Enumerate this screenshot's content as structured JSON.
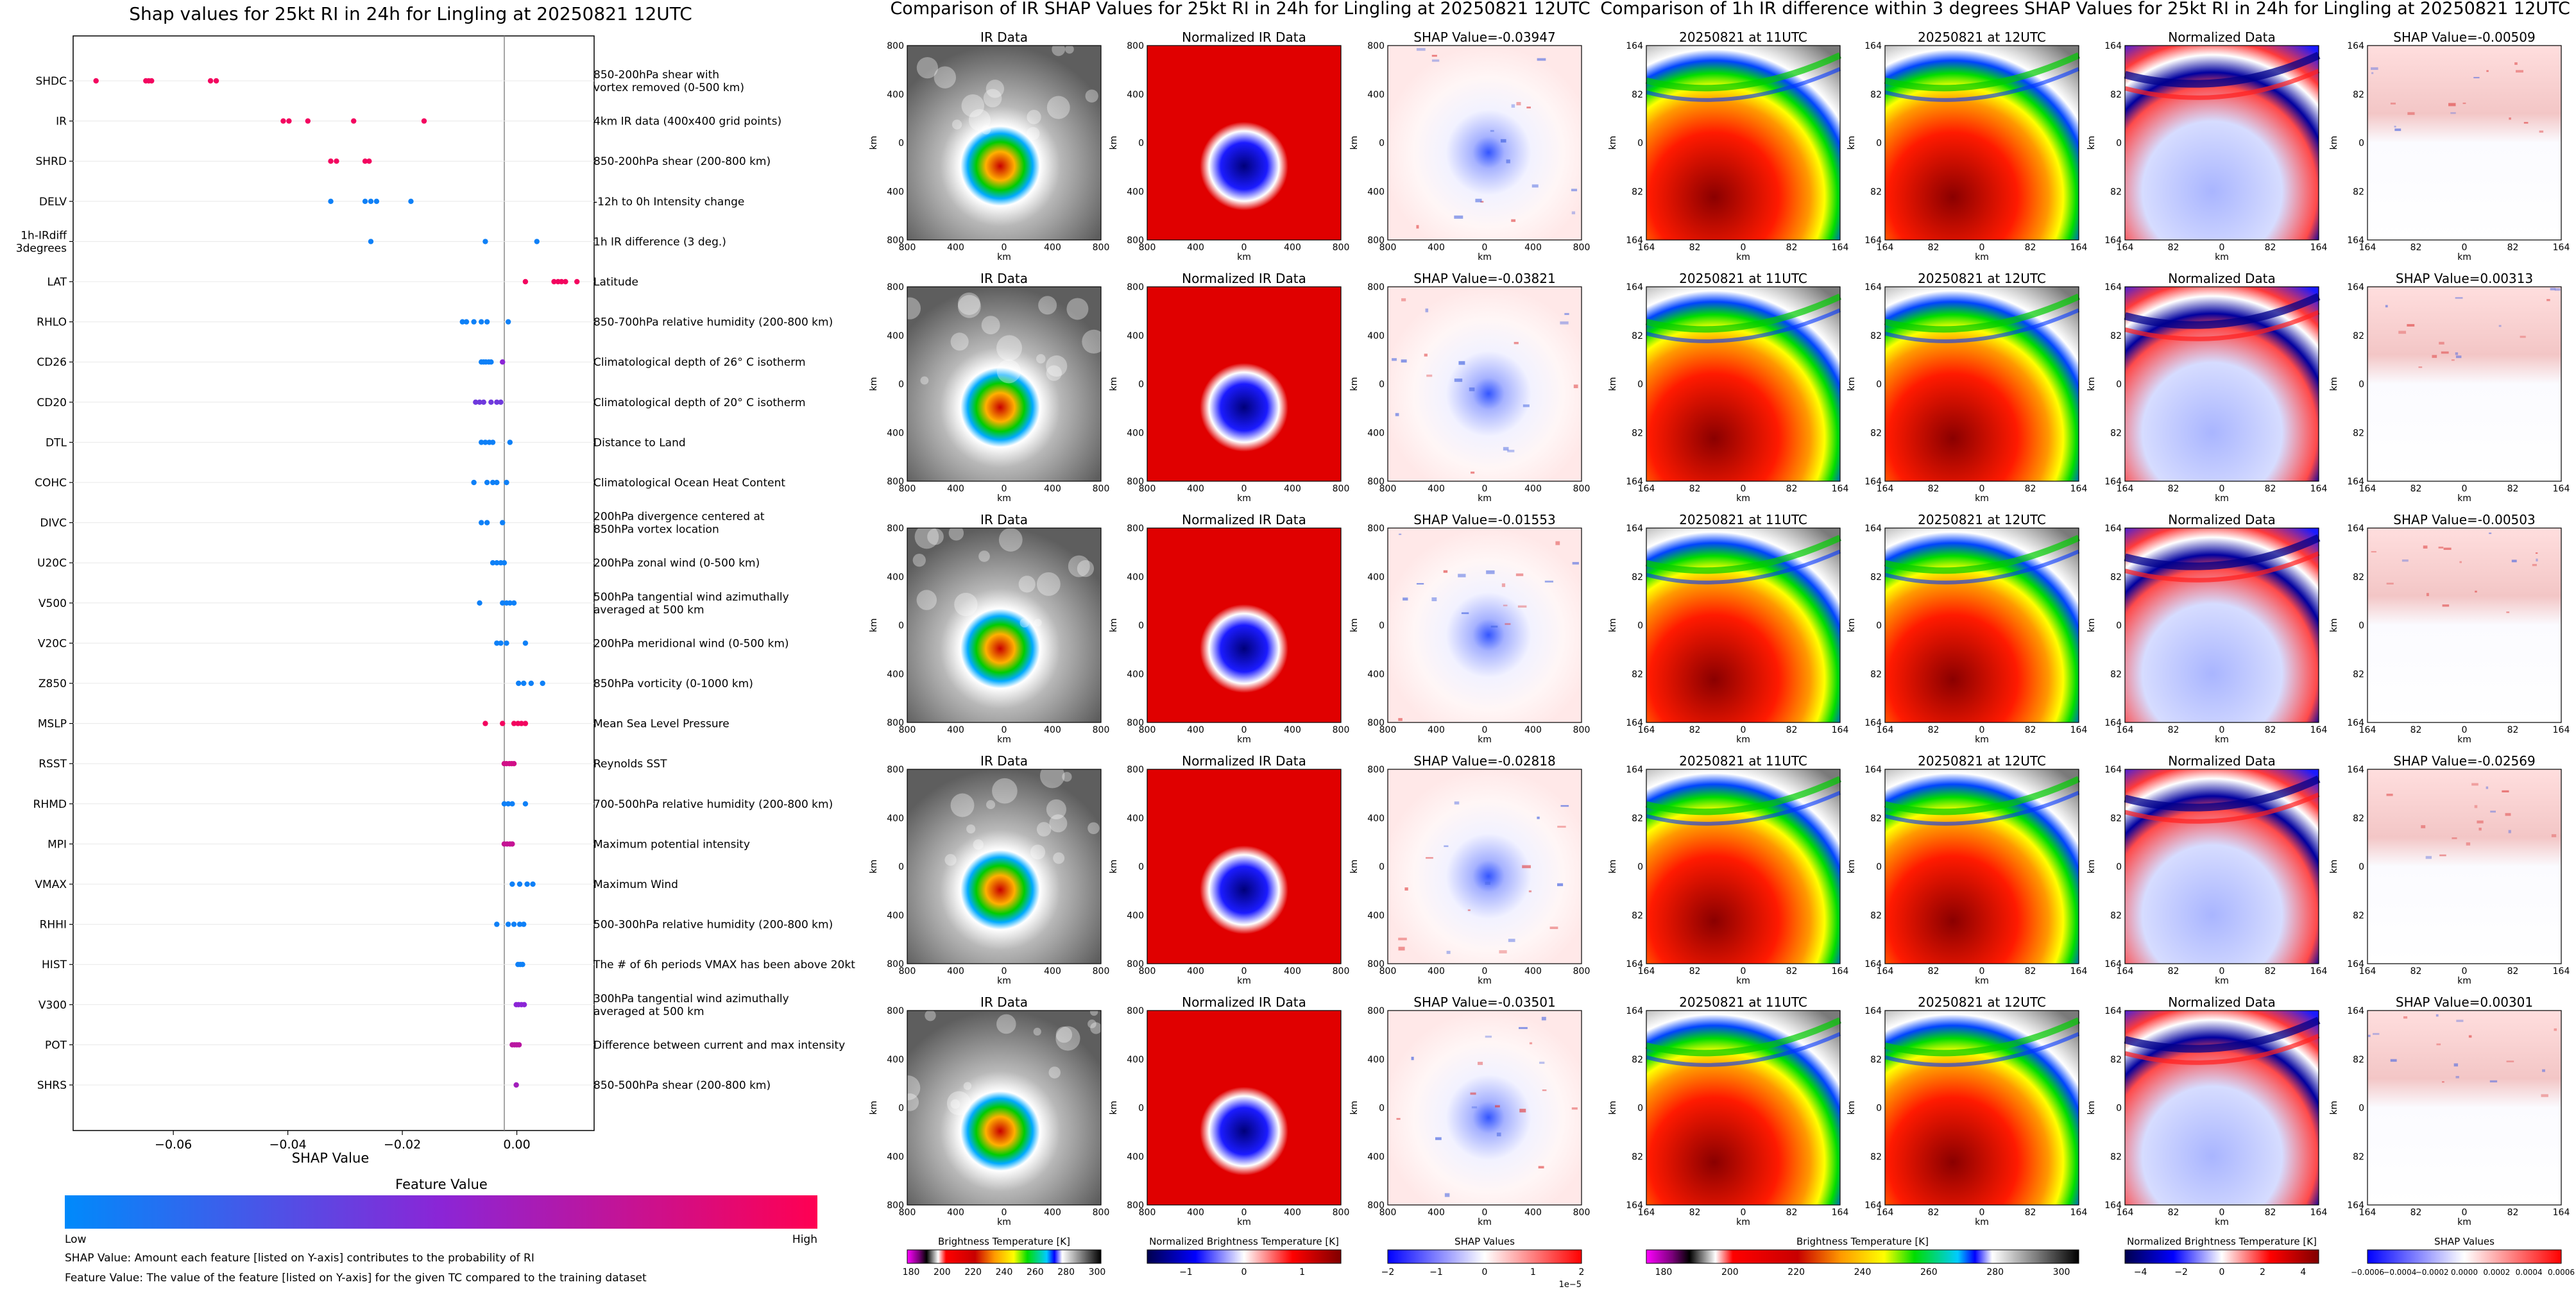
{
  "swarm": {
    "title": "Shap values for 25kt RI in 24h for Lingling at 20250821 12UTC",
    "xlabel": "SHAP Value",
    "xlim": [
      -0.0775,
      0.0135
    ],
    "xticks": [
      -0.06,
      -0.04,
      -0.02,
      0.0
    ],
    "xtick_labels": [
      "−0.06",
      "−0.04",
      "−0.02",
      "0.00"
    ],
    "colorbar_title": "Feature Value",
    "colorbar_low": "Low",
    "colorbar_high": "High",
    "colors": {
      "low": "#008afb",
      "mid": "#8b25d6",
      "high": "#ff0052"
    },
    "notes": [
      "SHAP Value: Amount each feature [listed on Y-axis] contributes to the probability of RI",
      "Feature Value: The value of the feature [listed on Y-axis] for the given TC compared to the training dataset"
    ]
  },
  "chart_data": [
    {
      "type": "scatter",
      "title": "Shap values for 25kt RI in 24h for Lingling at 20250821 12UTC",
      "xlabel": "SHAP Value",
      "xlim": [
        -0.0775,
        0.0135
      ],
      "features": [
        {
          "name": "SHDC",
          "desc": "850-200hPa shear with\nvortex removed (0-500 km)",
          "points": [
            [
              -0.0735,
              0.95
            ],
            [
              -0.0648,
              0.95
            ],
            [
              -0.0643,
              0.95
            ],
            [
              -0.0638,
              0.95
            ],
            [
              -0.0535,
              0.95
            ],
            [
              -0.0525,
              0.95
            ]
          ]
        },
        {
          "name": "IR",
          "desc": "4km IR data (400x400 grid points)",
          "points": [
            [
              -0.0408,
              0.95
            ],
            [
              -0.0398,
              0.95
            ],
            [
              -0.0365,
              0.95
            ],
            [
              -0.0285,
              0.95
            ],
            [
              -0.0162,
              0.95
            ]
          ]
        },
        {
          "name": "SHRD",
          "desc": "850-200hPa shear (200-800 km)",
          "points": [
            [
              -0.0325,
              0.95
            ],
            [
              -0.0315,
              0.95
            ],
            [
              -0.0265,
              0.95
            ],
            [
              -0.0258,
              0.95
            ]
          ]
        },
        {
          "name": "DELV",
          "desc": "-12h to 0h Intensity change",
          "points": [
            [
              -0.0325,
              0.05
            ],
            [
              -0.0265,
              0.05
            ],
            [
              -0.0255,
              0.05
            ],
            [
              -0.0245,
              0.05
            ],
            [
              -0.0185,
              0.05
            ]
          ]
        },
        {
          "name": "1h-IRdiff\n3degrees",
          "desc": "1h IR difference (3 deg.)",
          "points": [
            [
              -0.0255,
              0.05
            ],
            [
              -0.0055,
              0.05
            ],
            [
              0.0035,
              0.05
            ]
          ]
        },
        {
          "name": "LAT",
          "desc": "Latitude",
          "points": [
            [
              0.0015,
              0.95
            ],
            [
              0.0065,
              0.95
            ],
            [
              0.0072,
              0.95
            ],
            [
              0.0078,
              0.95
            ],
            [
              0.0085,
              0.95
            ],
            [
              0.0105,
              0.95
            ]
          ]
        },
        {
          "name": "RHLO",
          "desc": "850-700hPa relative humidity (200-800 km)",
          "points": [
            [
              -0.0095,
              0.05
            ],
            [
              -0.0088,
              0.05
            ],
            [
              -0.0075,
              0.05
            ],
            [
              -0.0062,
              0.05
            ],
            [
              -0.0052,
              0.05
            ],
            [
              -0.0015,
              0.05
            ]
          ]
        },
        {
          "name": "CD26",
          "desc": "Climatological depth of 26° C isotherm",
          "points": [
            [
              -0.0062,
              0.05
            ],
            [
              -0.0058,
              0.05
            ],
            [
              -0.0054,
              0.05
            ],
            [
              -0.0049,
              0.05
            ],
            [
              -0.0045,
              0.05
            ],
            [
              -0.0025,
              0.5
            ]
          ]
        },
        {
          "name": "CD20",
          "desc": "Climatological depth of 20° C isotherm",
          "points": [
            [
              -0.0072,
              0.4
            ],
            [
              -0.0065,
              0.4
            ],
            [
              -0.0058,
              0.4
            ],
            [
              -0.0045,
              0.4
            ],
            [
              -0.0035,
              0.4
            ],
            [
              -0.0028,
              0.4
            ]
          ]
        },
        {
          "name": "DTL",
          "desc": "Distance to Land",
          "points": [
            [
              -0.0062,
              0.05
            ],
            [
              -0.0055,
              0.05
            ],
            [
              -0.0048,
              0.05
            ],
            [
              -0.0042,
              0.05
            ],
            [
              -0.0012,
              0.05
            ]
          ]
        },
        {
          "name": "COHC",
          "desc": "Climatological Ocean Heat Content",
          "points": [
            [
              -0.0075,
              0.05
            ],
            [
              -0.0052,
              0.05
            ],
            [
              -0.0042,
              0.05
            ],
            [
              -0.0035,
              0.05
            ],
            [
              -0.0018,
              0.05
            ]
          ]
        },
        {
          "name": "DIVC",
          "desc": "200hPa divergence centered at\n850hPa vortex location",
          "points": [
            [
              -0.0062,
              0.05
            ],
            [
              -0.0052,
              0.05
            ],
            [
              -0.0025,
              0.05
            ]
          ]
        },
        {
          "name": "U20C",
          "desc": "200hPa zonal wind (0-500 km)",
          "points": [
            [
              -0.0042,
              0.05
            ],
            [
              -0.0035,
              0.05
            ],
            [
              -0.0028,
              0.05
            ],
            [
              -0.0022,
              0.05
            ]
          ]
        },
        {
          "name": "V500",
          "desc": "500hPa tangential wind azimuthally\naveraged at 500 km",
          "points": [
            [
              -0.0065,
              0.05
            ],
            [
              -0.0025,
              0.05
            ],
            [
              -0.0018,
              0.05
            ],
            [
              -0.0012,
              0.05
            ],
            [
              -0.0005,
              0.05
            ]
          ]
        },
        {
          "name": "V20C",
          "desc": "200hPa meridional wind (0-500 km)",
          "points": [
            [
              -0.0035,
              0.05
            ],
            [
              -0.0028,
              0.05
            ],
            [
              -0.0018,
              0.05
            ],
            [
              0.0015,
              0.05
            ]
          ]
        },
        {
          "name": "Z850",
          "desc": "850hPa vorticity (0-1000 km)",
          "points": [
            [
              0.0003,
              0.05
            ],
            [
              0.0012,
              0.05
            ],
            [
              0.0025,
              0.05
            ],
            [
              0.0045,
              0.05
            ]
          ]
        },
        {
          "name": "MSLP",
          "desc": "Mean Sea Level Pressure",
          "points": [
            [
              -0.0055,
              0.95
            ],
            [
              -0.0025,
              0.95
            ],
            [
              -0.0005,
              0.95
            ],
            [
              0.0002,
              0.95
            ],
            [
              0.0008,
              0.95
            ],
            [
              0.0015,
              0.95
            ]
          ]
        },
        {
          "name": "RSST",
          "desc": "Reynolds SST",
          "points": [
            [
              -0.0022,
              0.8
            ],
            [
              -0.0018,
              0.8
            ],
            [
              -0.0013,
              0.8
            ],
            [
              -0.0009,
              0.8
            ],
            [
              -0.0005,
              0.8
            ]
          ]
        },
        {
          "name": "RHMD",
          "desc": "700-500hPa relative humidity (200-800 km)",
          "points": [
            [
              -0.0022,
              0.05
            ],
            [
              -0.0015,
              0.05
            ],
            [
              -0.0008,
              0.05
            ],
            [
              0.0015,
              0.05
            ]
          ]
        },
        {
          "name": "MPI",
          "desc": "Maximum potential intensity",
          "points": [
            [
              -0.0022,
              0.75
            ],
            [
              -0.0017,
              0.75
            ],
            [
              -0.0012,
              0.75
            ],
            [
              -0.0008,
              0.75
            ]
          ]
        },
        {
          "name": "VMAX",
          "desc": "Maximum Wind",
          "points": [
            [
              -0.0008,
              0.05
            ],
            [
              0.0005,
              0.05
            ],
            [
              0.0018,
              0.05
            ],
            [
              0.0028,
              0.05
            ]
          ]
        },
        {
          "name": "RHHI",
          "desc": "500-300hPa relative humidity (200-800 km)",
          "points": [
            [
              -0.0035,
              0.05
            ],
            [
              -0.0015,
              0.05
            ],
            [
              -0.0005,
              0.05
            ],
            [
              0.0005,
              0.05
            ],
            [
              0.0012,
              0.05
            ]
          ]
        },
        {
          "name": "HIST",
          "desc": "The # of 6h periods VMAX has been above 20kt",
          "points": [
            [
              0.0002,
              0.05
            ],
            [
              0.0006,
              0.05
            ],
            [
              0.001,
              0.05
            ]
          ]
        },
        {
          "name": "V300",
          "desc": "300hPa tangential wind azimuthally\naveraged at 500 km",
          "points": [
            [
              -0.0001,
              0.5
            ],
            [
              0.0003,
              0.5
            ],
            [
              0.0008,
              0.5
            ],
            [
              0.0013,
              0.5
            ]
          ]
        },
        {
          "name": "POT",
          "desc": "Difference between current and max intensity",
          "points": [
            [
              -0.0008,
              0.7
            ],
            [
              -0.0004,
              0.7
            ],
            [
              0.0,
              0.7
            ],
            [
              0.0004,
              0.7
            ]
          ]
        },
        {
          "name": "SHRS",
          "desc": "850-500hPa shear (200-800 km)",
          "points": [
            [
              -0.0001,
              0.6
            ]
          ]
        }
      ]
    },
    {
      "type": "heatmap",
      "title": "Comparison of IR SHAP Values for 25kt RI in 24h for Lingling at 20250821 12UTC",
      "columns": [
        "IR Data",
        "Normalized IR Data",
        "SHAP Values"
      ],
      "rows_shap_values": [
        "SHAP Value=-0.03947",
        "SHAP Value=-0.03821",
        "SHAP Value=-0.01553",
        "SHAP Value=-0.02818",
        "SHAP Value=-0.03501"
      ],
      "axis_label": "km",
      "tick_labels": [
        "800",
        "400",
        "0",
        "400",
        "800"
      ]
    },
    {
      "type": "heatmap",
      "title": "Comparison of 1h IR difference within 3 degrees SHAP Values for 25kt RI in 24h for Lingling at 20250821 12UTC",
      "columns": [
        "20250821 at 11UTC",
        "20250821 at 12UTC",
        "Normalized Data",
        "SHAP Values"
      ],
      "rows_shap_values": [
        "SHAP Value=-0.00509",
        "SHAP Value=0.00313",
        "SHAP Value=-0.00503",
        "SHAP Value=-0.02569",
        "SHAP Value=0.00301"
      ],
      "axis_label": "km",
      "tick_labels": [
        "164",
        "82",
        "0",
        "82",
        "164"
      ]
    }
  ],
  "ir_panels": {
    "title": "Comparison of IR SHAP Values for 25kt RI in 24h for Lingling at 20250821 12UTC",
    "col_titles": [
      "IR Data",
      "Normalized IR Data"
    ],
    "shap_titles": [
      "SHAP Value=-0.03947",
      "SHAP Value=-0.03821",
      "SHAP Value=-0.01553",
      "SHAP Value=-0.02818",
      "SHAP Value=-0.03501"
    ],
    "axis_label": "km",
    "tick_labels": [
      "800",
      "400",
      "0",
      "400",
      "800"
    ],
    "colorbars": [
      {
        "label": "Brightness Temperature [K]",
        "ticks": [
          "180",
          "200",
          "220",
          "240",
          "260",
          "280",
          "300"
        ]
      },
      {
        "label": "Normalized Brightness Temperature [K]",
        "ticks": [
          "−1",
          "0",
          "1"
        ]
      },
      {
        "label": "SHAP Values",
        "ticks": [
          "−2",
          "−1",
          "0",
          "1",
          "2"
        ],
        "offset": "1e−5"
      }
    ]
  },
  "diff_panels": {
    "title": "Comparison of 1h IR difference within 3 degrees SHAP Values for 25kt RI in 24h for Lingling at 20250821 12UTC",
    "col_titles": [
      "20250821 at 11UTC",
      "20250821 at 12UTC",
      "Normalized Data"
    ],
    "shap_titles": [
      "SHAP Value=-0.00509",
      "SHAP Value=0.00313",
      "SHAP Value=-0.00503",
      "SHAP Value=-0.02569",
      "SHAP Value=0.00301"
    ],
    "axis_label": "km",
    "tick_labels": [
      "164",
      "82",
      "0",
      "82",
      "164"
    ],
    "colorbars": [
      {
        "label": "Brightness Temperature [K]",
        "ticks": [
          "180",
          "200",
          "220",
          "240",
          "260",
          "280",
          "300"
        ]
      },
      {
        "label": "Normalized Brightness Temperature [K]",
        "ticks": [
          "−4",
          "−2",
          "0",
          "2",
          "4"
        ]
      },
      {
        "label": "SHAP Values",
        "ticks": [
          "−0.0006",
          "−0.0004",
          "−0.0002",
          "0.0000",
          "0.0002",
          "0.0004",
          "0.0006"
        ]
      }
    ]
  }
}
